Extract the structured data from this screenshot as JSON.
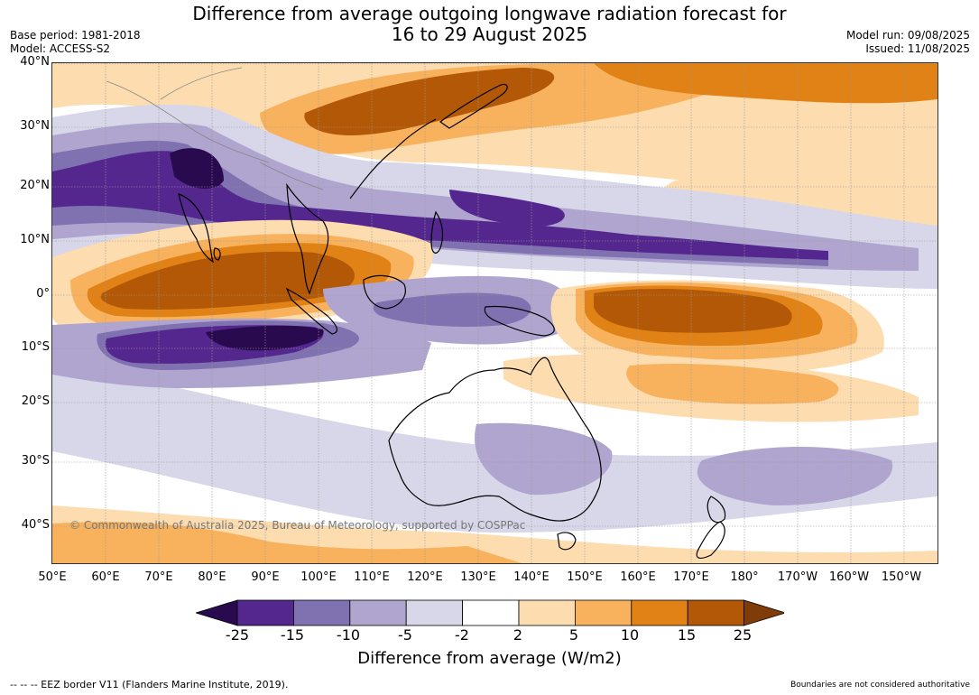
{
  "title_line1": "Difference from average outgoing longwave radiation forecast for",
  "title_line2": "16 to 29 August 2025",
  "meta_left": [
    "Base period: 1981-2018",
    "Model: ACCESS-S2"
  ],
  "meta_right": [
    "Model run: 09/08/2025",
    "Issued: 11/08/2025"
  ],
  "lat_labels": [
    "40°N",
    "30°N",
    "20°N",
    "10°N",
    "0°",
    "10°S",
    "20°S",
    "30°S",
    "40°S"
  ],
  "lon_labels": [
    "50°E",
    "60°E",
    "70°E",
    "80°E",
    "90°E",
    "100°E",
    "110°E",
    "120°E",
    "130°E",
    "140°E",
    "150°E",
    "160°E",
    "170°E",
    "180°",
    "170°W",
    "160°W",
    "150°W"
  ],
  "copyright": "© Commonwealth of Australia 2025, Bureau of Meteorology, supported by COSPPac",
  "colorbar": {
    "ticks": [
      "-25",
      "-15",
      "-10",
      "-5",
      "-2",
      "2",
      "5",
      "10",
      "15",
      "25"
    ],
    "colors": [
      "#2a0a4e",
      "#54278f",
      "#8071b0",
      "#afa5cf",
      "#d7d7e9",
      "#ffffff",
      "#fddcb0",
      "#f8b25e",
      "#e08216",
      "#b35806",
      "#7f3b08"
    ],
    "title": "Difference from average (W/m2)"
  },
  "eez_note": "-- -- -- EEZ border V11 (Flanders Marine Institute, 2019).",
  "boundaries_note": "Boundaries are not considered authoritative"
}
